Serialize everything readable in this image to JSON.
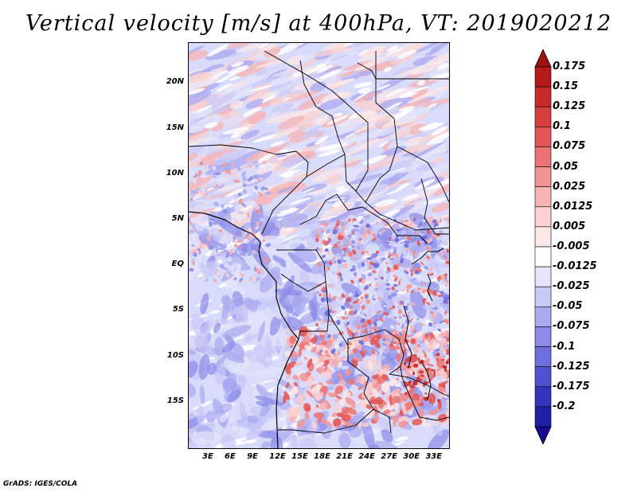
{
  "title": "Vertical velocity [m/s] at 400hPa, VT: 2019020212",
  "footer": "GrADS: IGES/COLA",
  "map": {
    "lat_range": [
      -20,
      24.5
    ],
    "lon_range": [
      0,
      35
    ],
    "lat_ticks": [
      {
        "value": 20,
        "label": "20N"
      },
      {
        "value": 15,
        "label": "15N"
      },
      {
        "value": 10,
        "label": "10N"
      },
      {
        "value": 5,
        "label": "5N"
      },
      {
        "value": 0,
        "label": "EQ"
      },
      {
        "value": -5,
        "label": "5S"
      },
      {
        "value": -10,
        "label": "10S"
      },
      {
        "value": -15,
        "label": "15S"
      }
    ],
    "lon_ticks": [
      {
        "value": 3,
        "label": "3E"
      },
      {
        "value": 6,
        "label": "6E"
      },
      {
        "value": 9,
        "label": "9E"
      },
      {
        "value": 12,
        "label": "12E"
      },
      {
        "value": 15,
        "label": "15E"
      },
      {
        "value": 18,
        "label": "18E"
      },
      {
        "value": 21,
        "label": "21E"
      },
      {
        "value": 24,
        "label": "24E"
      },
      {
        "value": 27,
        "label": "27E"
      },
      {
        "value": 30,
        "label": "30E"
      },
      {
        "value": 33,
        "label": "33E"
      }
    ]
  },
  "colorbar": {
    "top_arrow_color": "#a01010",
    "bottom_arrow_color": "#1a0a90",
    "levels": [
      {
        "label": "0.175",
        "color": "#b41a1a"
      },
      {
        "label": "0.15",
        "color": "#c62a2a"
      },
      {
        "label": "0.125",
        "color": "#d63e3e"
      },
      {
        "label": "0.1",
        "color": "#e25656"
      },
      {
        "label": "0.075",
        "color": "#ea7474"
      },
      {
        "label": "0.05",
        "color": "#f29494"
      },
      {
        "label": "0.025",
        "color": "#f7b4b4"
      },
      {
        "label": "0.0125",
        "color": "#fad0d0"
      },
      {
        "label": "0.005",
        "color": "#fce8e8"
      },
      {
        "label": "-0.005",
        "color": "#ffffff"
      },
      {
        "label": "-0.0125",
        "color": "#e4e4fb"
      },
      {
        "label": "-0.025",
        "color": "#c9c9f6"
      },
      {
        "label": "-0.05",
        "color": "#aaaaf0"
      },
      {
        "label": "-0.075",
        "color": "#8c8ce8"
      },
      {
        "label": "-0.1",
        "color": "#6e6ede"
      },
      {
        "label": "-0.125",
        "color": "#5050d0"
      },
      {
        "label": "-0.175",
        "color": "#3434bc"
      },
      {
        "label": "-0.2",
        "color": "#2020a4"
      }
    ]
  }
}
